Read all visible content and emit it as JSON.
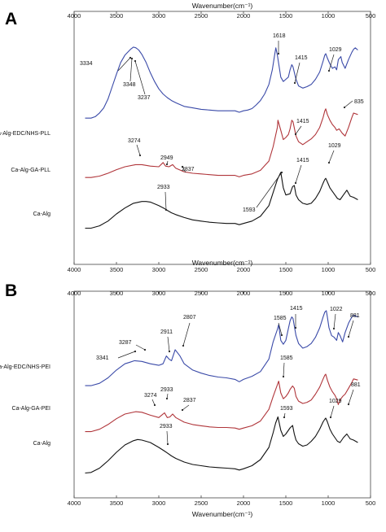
{
  "chart_data": [
    {
      "type": "line",
      "panel_label": "A",
      "xlabel": "Wavenumber(cm⁻¹)",
      "xlim": [
        4000,
        500
      ],
      "x_ticks": [
        "4000",
        "3500",
        "3000",
        "2500",
        "2000",
        "1500",
        "1000",
        "500"
      ],
      "grid": false,
      "series": [
        {
          "name": "Ca-Alg-EDC/NHS-PLL",
          "color": "#3a4aa8",
          "x": [
            3870,
            3800,
            3750,
            3700,
            3650,
            3600,
            3550,
            3500,
            3450,
            3400,
            3334,
            3300,
            3270,
            3237,
            3200,
            3150,
            3100,
            3050,
            3000,
            2950,
            2900,
            2850,
            2800,
            2700,
            2600,
            2500,
            2400,
            2300,
            2200,
            2100,
            2050,
            2000,
            1950,
            1900,
            1850,
            1800,
            1750,
            1700,
            1660,
            1630,
            1618,
            1600,
            1560,
            1530,
            1500,
            1470,
            1450,
            1430,
            1415,
            1380,
            1350,
            1300,
            1250,
            1200,
            1150,
            1100,
            1060,
            1040,
            1029,
            1010,
            980,
            950,
            920,
            900,
            880,
            850,
            835,
            800,
            760,
            720,
            700,
            680,
            650
          ],
          "y": [
            0.02,
            0.02,
            0.04,
            0.09,
            0.16,
            0.28,
            0.45,
            0.62,
            0.78,
            0.88,
            0.96,
            0.99,
            0.98,
            0.95,
            0.89,
            0.78,
            0.64,
            0.52,
            0.42,
            0.35,
            0.3,
            0.26,
            0.23,
            0.18,
            0.16,
            0.14,
            0.13,
            0.12,
            0.12,
            0.12,
            0.1,
            0.12,
            0.13,
            0.15,
            0.2,
            0.26,
            0.35,
            0.48,
            0.68,
            0.9,
            0.98,
            0.88,
            0.58,
            0.52,
            0.55,
            0.58,
            0.68,
            0.75,
            0.72,
            0.55,
            0.46,
            0.43,
            0.45,
            0.48,
            0.55,
            0.65,
            0.8,
            0.88,
            0.9,
            0.84,
            0.76,
            0.7,
            0.72,
            0.68,
            0.82,
            0.86,
            0.78,
            0.7,
            0.82,
            0.92,
            0.96,
            0.98,
            0.95
          ]
        },
        {
          "name": "Ca-Alg-GA-PLL",
          "color": "#b0353a",
          "x": [
            3870,
            3800,
            3700,
            3600,
            3500,
            3400,
            3274,
            3200,
            3100,
            3000,
            2949,
            2920,
            2880,
            2837,
            2800,
            2700,
            2600,
            2500,
            2400,
            2300,
            2200,
            2100,
            2050,
            2000,
            1900,
            1800,
            1700,
            1650,
            1600,
            1593,
            1560,
            1530,
            1500,
            1470,
            1450,
            1430,
            1415,
            1380,
            1350,
            1300,
            1250,
            1200,
            1150,
            1100,
            1060,
            1040,
            1029,
            1010,
            980,
            950,
            920,
            900,
            870,
            835,
            800,
            760,
            720,
            700,
            650
          ],
          "y": [
            0.02,
            0.02,
            0.04,
            0.08,
            0.13,
            0.17,
            0.2,
            0.2,
            0.18,
            0.17,
            0.23,
            0.18,
            0.17,
            0.2,
            0.15,
            0.1,
            0.08,
            0.07,
            0.06,
            0.05,
            0.05,
            0.05,
            0.03,
            0.05,
            0.07,
            0.12,
            0.25,
            0.45,
            0.72,
            0.82,
            0.68,
            0.55,
            0.58,
            0.62,
            0.7,
            0.82,
            0.8,
            0.6,
            0.52,
            0.48,
            0.52,
            0.56,
            0.62,
            0.72,
            0.86,
            0.95,
            0.98,
            0.9,
            0.82,
            0.76,
            0.72,
            0.68,
            0.7,
            0.64,
            0.6,
            0.72,
            0.86,
            0.92,
            0.9
          ]
        },
        {
          "name": "Ca-Alg",
          "color": "#111111",
          "x": [
            3870,
            3800,
            3700,
            3600,
            3500,
            3400,
            3300,
            3200,
            3150,
            3100,
            3000,
            2933,
            2900,
            2850,
            2800,
            2700,
            2600,
            2500,
            2400,
            2300,
            2200,
            2100,
            2050,
            2000,
            1900,
            1800,
            1700,
            1650,
            1600,
            1560,
            1530,
            1500,
            1450,
            1420,
            1400,
            1380,
            1350,
            1300,
            1250,
            1200,
            1150,
            1100,
            1060,
            1040,
            1029,
            1010,
            980,
            950,
            920,
            890,
            860,
            820,
            780,
            740,
            700,
            650
          ],
          "y": [
            0.02,
            0.02,
            0.06,
            0.14,
            0.26,
            0.36,
            0.44,
            0.47,
            0.47,
            0.46,
            0.4,
            0.35,
            0.32,
            0.28,
            0.25,
            0.2,
            0.16,
            0.14,
            0.12,
            0.11,
            0.1,
            0.1,
            0.08,
            0.1,
            0.14,
            0.22,
            0.4,
            0.62,
            0.84,
            0.96,
            0.7,
            0.58,
            0.6,
            0.72,
            0.74,
            0.58,
            0.5,
            0.44,
            0.42,
            0.44,
            0.52,
            0.64,
            0.78,
            0.84,
            0.86,
            0.8,
            0.7,
            0.64,
            0.58,
            0.52,
            0.5,
            0.58,
            0.66,
            0.56,
            0.54,
            0.5
          ]
        }
      ],
      "annotations": [
        {
          "text": "3334",
          "series": 0
        },
        {
          "text": "3348",
          "series": 0
        },
        {
          "text": "3237",
          "series": 0
        },
        {
          "text": "1618",
          "series": 0
        },
        {
          "text": "1415",
          "series": 0
        },
        {
          "text": "1029",
          "series": 0
        },
        {
          "text": "835",
          "series": 0
        },
        {
          "text": "3274",
          "series": 1
        },
        {
          "text": "2949",
          "series": 1
        },
        {
          "text": "2837",
          "series": 1
        },
        {
          "text": "1415",
          "series": 1
        },
        {
          "text": "1593",
          "series": 1
        },
        {
          "text": "1415",
          "series": 2
        },
        {
          "text": "1029",
          "series": 2
        },
        {
          "text": "2933",
          "series": 2
        }
      ]
    },
    {
      "type": "line",
      "panel_label": "B",
      "xlabel": "Wavenumber(cm⁻¹)",
      "xlim": [
        4000,
        500
      ],
      "x_ticks": [
        "4000",
        "3500",
        "3000",
        "2500",
        "2000",
        "1500",
        "1000",
        "500"
      ],
      "grid": false,
      "series": [
        {
          "name": "Ca-Alg-EDC/NHS-PEI",
          "color": "#3a4aa8",
          "x": [
            3870,
            3800,
            3700,
            3600,
            3500,
            3400,
            3341,
            3287,
            3200,
            3100,
            3000,
            2950,
            2911,
            2880,
            2850,
            2807,
            2750,
            2700,
            2600,
            2500,
            2400,
            2300,
            2200,
            2100,
            2050,
            2000,
            1900,
            1800,
            1700,
            1650,
            1600,
            1585,
            1560,
            1530,
            1500,
            1470,
            1450,
            1430,
            1415,
            1380,
            1350,
            1300,
            1250,
            1200,
            1150,
            1100,
            1060,
            1040,
            1022,
            1010,
            990,
            960,
            930,
            900,
            881,
            860,
            830,
            800,
            760,
            720,
            700,
            650
          ],
          "y": [
            0.02,
            0.02,
            0.05,
            0.12,
            0.22,
            0.3,
            0.32,
            0.34,
            0.33,
            0.3,
            0.28,
            0.3,
            0.4,
            0.36,
            0.34,
            0.48,
            0.4,
            0.3,
            0.22,
            0.18,
            0.15,
            0.13,
            0.12,
            0.1,
            0.07,
            0.1,
            0.14,
            0.2,
            0.36,
            0.58,
            0.74,
            0.8,
            0.6,
            0.55,
            0.6,
            0.75,
            0.85,
            0.9,
            0.88,
            0.66,
            0.56,
            0.5,
            0.52,
            0.56,
            0.64,
            0.76,
            0.9,
            0.96,
            0.98,
            0.9,
            0.76,
            0.66,
            0.64,
            0.6,
            0.7,
            0.66,
            0.58,
            0.7,
            0.82,
            0.9,
            0.92,
            0.9
          ]
        },
        {
          "name": "Ca-Alg-GA-PEI",
          "color": "#b0353a",
          "x": [
            3870,
            3800,
            3700,
            3600,
            3500,
            3400,
            3274,
            3200,
            3100,
            3000,
            2933,
            2900,
            2870,
            2837,
            2800,
            2700,
            2600,
            2500,
            2400,
            2300,
            2200,
            2100,
            2050,
            2000,
            1900,
            1800,
            1700,
            1650,
            1600,
            1585,
            1560,
            1530,
            1500,
            1470,
            1450,
            1420,
            1400,
            1380,
            1350,
            1300,
            1250,
            1200,
            1150,
            1100,
            1060,
            1040,
            1029,
            1010,
            980,
            950,
            920,
            900,
            881,
            860,
            830,
            800,
            760,
            720,
            700,
            650
          ],
          "y": [
            0.02,
            0.02,
            0.06,
            0.14,
            0.24,
            0.32,
            0.36,
            0.35,
            0.3,
            0.26,
            0.34,
            0.26,
            0.27,
            0.32,
            0.26,
            0.18,
            0.14,
            0.12,
            0.1,
            0.09,
            0.09,
            0.08,
            0.06,
            0.08,
            0.12,
            0.2,
            0.4,
            0.62,
            0.82,
            0.88,
            0.68,
            0.58,
            0.62,
            0.68,
            0.74,
            0.8,
            0.76,
            0.62,
            0.54,
            0.5,
            0.52,
            0.56,
            0.66,
            0.78,
            0.92,
            0.98,
            1.0,
            0.9,
            0.78,
            0.7,
            0.64,
            0.58,
            0.48,
            0.56,
            0.62,
            0.66,
            0.76,
            0.86,
            0.92,
            0.9
          ]
        },
        {
          "name": "Ca-Alg",
          "color": "#111111",
          "x": [
            3870,
            3800,
            3700,
            3600,
            3500,
            3400,
            3300,
            3250,
            3200,
            3100,
            3000,
            2933,
            2900,
            2850,
            2800,
            2700,
            2600,
            2500,
            2400,
            2300,
            2200,
            2100,
            2050,
            2000,
            1900,
            1800,
            1700,
            1650,
            1620,
            1593,
            1560,
            1530,
            1500,
            1450,
            1420,
            1400,
            1380,
            1350,
            1300,
            1250,
            1200,
            1150,
            1100,
            1060,
            1040,
            1029,
            1010,
            980,
            950,
            920,
            890,
            860,
            820,
            780,
            740,
            700,
            650
          ],
          "y": [
            0.02,
            0.03,
            0.1,
            0.22,
            0.36,
            0.48,
            0.55,
            0.57,
            0.56,
            0.52,
            0.44,
            0.38,
            0.35,
            0.3,
            0.26,
            0.2,
            0.16,
            0.14,
            0.12,
            0.11,
            0.1,
            0.09,
            0.07,
            0.09,
            0.14,
            0.24,
            0.44,
            0.68,
            0.84,
            0.94,
            0.72,
            0.62,
            0.66,
            0.76,
            0.8,
            0.66,
            0.56,
            0.5,
            0.46,
            0.48,
            0.54,
            0.62,
            0.74,
            0.86,
            0.9,
            0.92,
            0.86,
            0.74,
            0.66,
            0.6,
            0.54,
            0.52,
            0.6,
            0.66,
            0.58,
            0.56,
            0.52
          ]
        }
      ],
      "annotations": [
        {
          "text": "3341",
          "series": 0
        },
        {
          "text": "3287",
          "series": 0
        },
        {
          "text": "2911",
          "series": 0
        },
        {
          "text": "2807",
          "series": 0
        },
        {
          "text": "1585",
          "series": 0
        },
        {
          "text": "1415",
          "series": 0
        },
        {
          "text": "1022",
          "series": 0
        },
        {
          "text": "881",
          "series": 0
        },
        {
          "text": "3274",
          "series": 1
        },
        {
          "text": "2933",
          "series": 1
        },
        {
          "text": "2837",
          "series": 1
        },
        {
          "text": "1585",
          "series": 1
        },
        {
          "text": "881",
          "series": 1
        },
        {
          "text": "1593",
          "series": 2
        },
        {
          "text": "1029",
          "series": 2
        },
        {
          "text": "2933",
          "series": 2
        }
      ]
    }
  ]
}
